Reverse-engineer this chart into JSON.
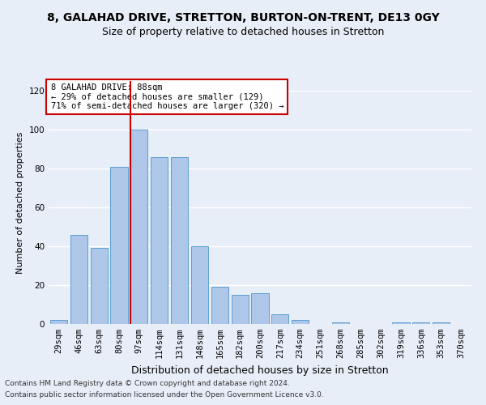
{
  "title_line1": "8, GALAHAD DRIVE, STRETTON, BURTON-ON-TRENT, DE13 0GY",
  "title_line2": "Size of property relative to detached houses in Stretton",
  "xlabel": "Distribution of detached houses by size in Stretton",
  "ylabel": "Number of detached properties",
  "categories": [
    "29sqm",
    "46sqm",
    "63sqm",
    "80sqm",
    "97sqm",
    "114sqm",
    "131sqm",
    "148sqm",
    "165sqm",
    "182sqm",
    "200sqm",
    "217sqm",
    "234sqm",
    "251sqm",
    "268sqm",
    "285sqm",
    "302sqm",
    "319sqm",
    "336sqm",
    "353sqm",
    "370sqm"
  ],
  "values": [
    2,
    46,
    39,
    81,
    100,
    86,
    86,
    40,
    19,
    15,
    16,
    5,
    2,
    0,
    1,
    0,
    0,
    1,
    1,
    1,
    0
  ],
  "bar_color": "#aec6e8",
  "bar_edge_color": "#5a9fd4",
  "vline_color": "#cc0000",
  "vline_position": 3.57,
  "annotation_text": "8 GALAHAD DRIVE: 88sqm\n← 29% of detached houses are smaller (129)\n71% of semi-detached houses are larger (320) →",
  "annotation_box_color": "#ffffff",
  "annotation_box_edge": "#cc0000",
  "ylim": [
    0,
    125
  ],
  "yticks": [
    0,
    20,
    40,
    60,
    80,
    100,
    120
  ],
  "footer_line1": "Contains HM Land Registry data © Crown copyright and database right 2024.",
  "footer_line2": "Contains public sector information licensed under the Open Government Licence v3.0.",
  "background_color": "#e8eef8",
  "grid_color": "#ffffff",
  "title1_fontsize": 10,
  "title2_fontsize": 9,
  "xlabel_fontsize": 9,
  "ylabel_fontsize": 8,
  "tick_fontsize": 7.5,
  "annotation_fontsize": 7.5,
  "footer_fontsize": 6.5
}
